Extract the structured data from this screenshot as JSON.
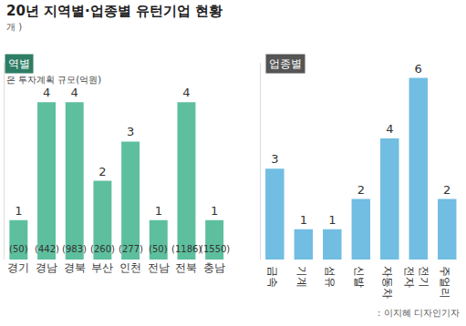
{
  "header": {
    "title": "20년 지역별·업종별 유턴기업 현황",
    "unit": "개 )",
    "credit": ": 이지혜 디자인기자"
  },
  "chart_data": [
    {
      "type": "bar",
      "title": "역별",
      "subtitle": "은 투자계획 규모(억원)",
      "categories": [
        "경기",
        "경남",
        "경북",
        "부산",
        "인천",
        "전남",
        "전북",
        "충남"
      ],
      "values": [
        1,
        4,
        4,
        2,
        3,
        1,
        4,
        1
      ],
      "investment": {
        "values": [
          50,
          442,
          983,
          260,
          277,
          50,
          1186,
          1550
        ],
        "value_labels": [
          "(50)",
          "(442)",
          "(983)",
          "(260)",
          "(277)",
          "(50)",
          "(1186)",
          "(1550)"
        ]
      },
      "color": "#5dbf9d",
      "ylim": [
        0,
        5
      ],
      "yticks": [
        0
      ],
      "grid": false,
      "data_labels": true,
      "tick_labels": "x"
    },
    {
      "type": "bar",
      "title": "업종별",
      "categories": [
        "금속",
        "기계",
        "섬유",
        "신발",
        "자동차",
        "전기\n전자",
        "주얼리"
      ],
      "values": [
        3,
        1,
        1,
        2,
        4,
        6,
        2
      ],
      "color": "#72bde2",
      "ylim": [
        0,
        6.5
      ],
      "yticks": [
        0
      ],
      "grid": false,
      "data_labels": true,
      "tick_labels": "x"
    }
  ]
}
